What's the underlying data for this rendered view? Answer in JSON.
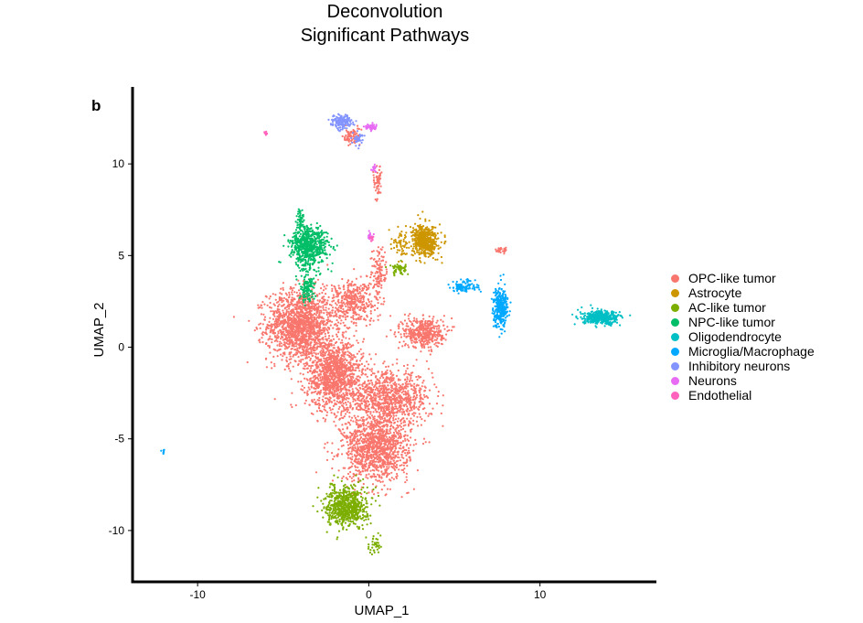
{
  "chart_data": {
    "type": "scatter",
    "title": [
      "Deconvolution",
      "Significant Pathways"
    ],
    "panel_label": "b",
    "xlabel": "UMAP_1",
    "ylabel": "UMAP_2",
    "xlim": [
      -13.8,
      16.8
    ],
    "ylim": [
      -12.8,
      14.2
    ],
    "xticks": [
      -10,
      0,
      10
    ],
    "yticks": [
      -10,
      -5,
      0,
      5,
      10
    ],
    "grid": false,
    "legend_position": "right",
    "series": [
      {
        "name": "OPC-like tumor",
        "color": "#F8766D",
        "clusters": [
          {
            "center": [
              -4.0,
              1.2
            ],
            "spread": [
              1.6,
              1.6
            ],
            "n": 1500
          },
          {
            "center": [
              -2.0,
              -1.5
            ],
            "spread": [
              1.4,
              1.6
            ],
            "n": 1200
          },
          {
            "center": [
              1.2,
              -2.8
            ],
            "spread": [
              2.0,
              1.2
            ],
            "n": 900
          },
          {
            "center": [
              0.4,
              -5.5
            ],
            "spread": [
              1.6,
              1.5
            ],
            "n": 1200
          },
          {
            "center": [
              3.2,
              0.8
            ],
            "spread": [
              1.0,
              0.7
            ],
            "n": 450
          },
          {
            "center": [
              -1.0,
              2.5
            ],
            "spread": [
              1.2,
              1.0
            ],
            "n": 400
          },
          {
            "center": [
              0.6,
              4.0
            ],
            "spread": [
              0.4,
              1.2
            ],
            "n": 120
          },
          {
            "center": [
              0.5,
              9.0
            ],
            "spread": [
              0.2,
              0.8
            ],
            "n": 60
          },
          {
            "center": [
              -1.0,
              11.5
            ],
            "spread": [
              0.4,
              0.4
            ],
            "n": 80
          },
          {
            "center": [
              7.8,
              5.3
            ],
            "spread": [
              0.3,
              0.15
            ],
            "n": 30
          }
        ]
      },
      {
        "name": "Astrocyte",
        "color": "#CD9600",
        "clusters": [
          {
            "center": [
              3.3,
              5.8
            ],
            "spread": [
              0.6,
              0.7
            ],
            "n": 550
          },
          {
            "center": [
              1.8,
              5.6
            ],
            "spread": [
              0.5,
              0.6
            ],
            "n": 60
          }
        ]
      },
      {
        "name": "AC-like tumor",
        "color": "#7CAE00",
        "clusters": [
          {
            "center": [
              -1.3,
              -8.7
            ],
            "spread": [
              1.0,
              0.9
            ],
            "n": 700
          },
          {
            "center": [
              0.4,
              -10.8
            ],
            "spread": [
              0.3,
              0.4
            ],
            "n": 40
          },
          {
            "center": [
              1.8,
              4.3
            ],
            "spread": [
              0.5,
              0.3
            ],
            "n": 60
          }
        ]
      },
      {
        "name": "NPC-like tumor",
        "color": "#00BE67",
        "clusters": [
          {
            "center": [
              -3.5,
              5.5
            ],
            "spread": [
              0.9,
              0.9
            ],
            "n": 650
          },
          {
            "center": [
              -3.6,
              3.3
            ],
            "spread": [
              0.4,
              0.7
            ],
            "n": 120
          },
          {
            "center": [
              -4.0,
              6.9
            ],
            "spread": [
              0.2,
              0.5
            ],
            "n": 50
          }
        ]
      },
      {
        "name": "Oligodendrocyte",
        "color": "#00BFC4",
        "clusters": [
          {
            "center": [
              13.6,
              1.6
            ],
            "spread": [
              0.9,
              0.3
            ],
            "n": 380
          }
        ]
      },
      {
        "name": "Microglia/Macrophage",
        "color": "#00A9FF",
        "clusters": [
          {
            "center": [
              7.7,
              2.2
            ],
            "spread": [
              0.35,
              0.9
            ],
            "n": 320
          },
          {
            "center": [
              5.6,
              3.3
            ],
            "spread": [
              0.7,
              0.3
            ],
            "n": 100
          },
          {
            "center": [
              -12.0,
              -5.7
            ],
            "spread": [
              0.1,
              0.1
            ],
            "n": 8
          }
        ]
      },
      {
        "name": "Inhibitory neurons",
        "color": "#8494FF",
        "clusters": [
          {
            "center": [
              -1.6,
              12.3
            ],
            "spread": [
              0.5,
              0.3
            ],
            "n": 170
          },
          {
            "center": [
              -0.6,
              11.4
            ],
            "spread": [
              0.25,
              0.3
            ],
            "n": 40
          }
        ]
      },
      {
        "name": "Neurons",
        "color": "#E76BF3",
        "clusters": [
          {
            "center": [
              0.1,
              12.0
            ],
            "spread": [
              0.3,
              0.15
            ],
            "n": 50
          },
          {
            "center": [
              0.3,
              9.8
            ],
            "spread": [
              0.12,
              0.2
            ],
            "n": 12
          },
          {
            "center": [
              0.1,
              6.1
            ],
            "spread": [
              0.15,
              0.25
            ],
            "n": 15
          }
        ]
      },
      {
        "name": "Endothelial",
        "color": "#FF62BC",
        "clusters": [
          {
            "center": [
              -6.0,
              11.7
            ],
            "spread": [
              0.1,
              0.08
            ],
            "n": 10
          },
          {
            "center": [
              0.2,
              5.9
            ],
            "spread": [
              0.15,
              0.15
            ],
            "n": 10
          }
        ]
      }
    ]
  }
}
